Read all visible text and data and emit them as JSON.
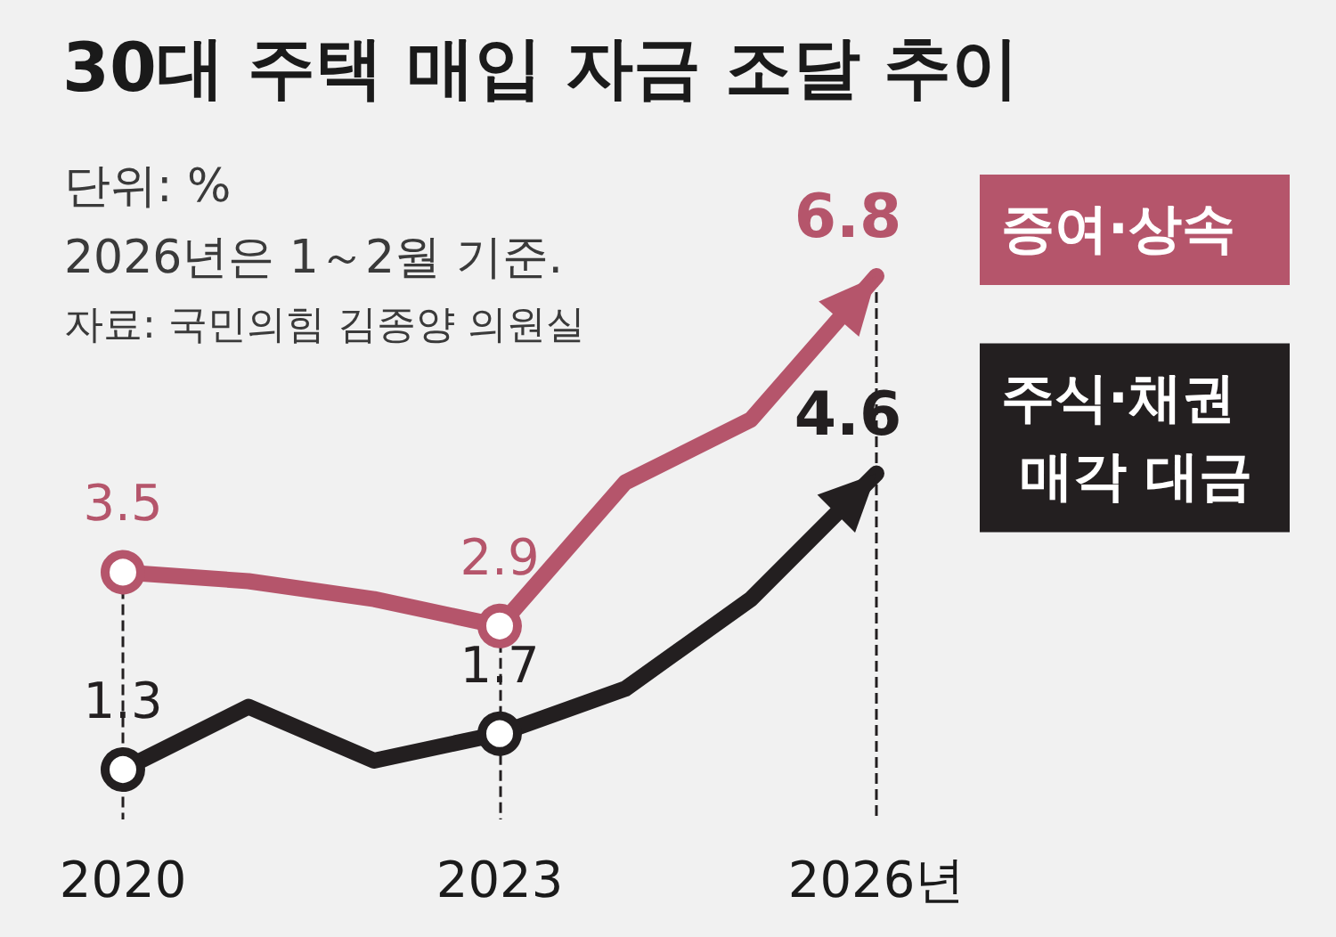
{
  "chart_data": {
    "type": "line",
    "title": "30대 주택 매입 자금 조달 추이",
    "annotations": [
      "단위: %",
      "2026년은 1～2월 기준.",
      "자료: 국민의힘 김종양 의원실"
    ],
    "x": [
      2020,
      2021,
      2022,
      2023,
      2024,
      2025,
      2026
    ],
    "xlim": [
      2020,
      2026
    ],
    "xticks": [
      {
        "value": 2020,
        "label": "2020"
      },
      {
        "value": 2023,
        "label": "2023"
      },
      {
        "value": 2026,
        "label": "2026년"
      }
    ],
    "series": [
      {
        "name": "증여·상속",
        "color": "#b5556b",
        "values": [
          3.5,
          3.4,
          3.2,
          2.9,
          4.5,
          5.2,
          6.8
        ],
        "value_labels": [
          "3.5",
          null,
          null,
          "2.9",
          null,
          null,
          "6.8"
        ]
      },
      {
        "name": "주식·채권 매각 대금",
        "color": "#231f20",
        "values": [
          1.3,
          2.0,
          1.4,
          1.7,
          2.2,
          3.2,
          4.6
        ],
        "value_labels": [
          "1.3",
          null,
          null,
          "1.7",
          null,
          null,
          "4.6"
        ]
      }
    ],
    "ref_lines": [
      {
        "axis": "x",
        "value": 2020,
        "color": "#231f20",
        "line_style": "dashed"
      },
      {
        "axis": "x",
        "value": 2023,
        "color": "#231f20",
        "line_style": "dashed"
      },
      {
        "axis": "x",
        "value": 2026,
        "color": "#231f20",
        "line_style": "dashed"
      }
    ],
    "line_style": "solid",
    "grid": false,
    "legend": false
  }
}
